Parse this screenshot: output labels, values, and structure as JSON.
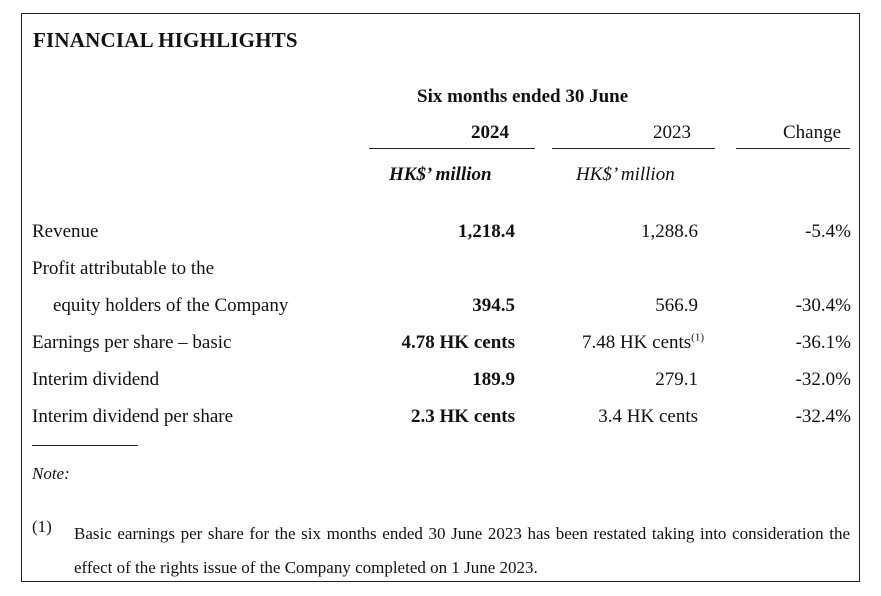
{
  "title": "FINANCIAL HIGHLIGHTS",
  "period": "Six months ended 30 June",
  "columns": {
    "current": "2024",
    "prior": "2023",
    "change": "Change",
    "unit_current": "HK$’ million",
    "unit_prior": "HK$’ million"
  },
  "rows": [
    {
      "label": "Revenue",
      "current": "1,218.4",
      "prior": "1,288.6",
      "change": "-5.4%"
    },
    {
      "label": "Profit attributable to the",
      "current": "",
      "prior": "",
      "change": ""
    },
    {
      "label": "equity holders of the Company",
      "current": "394.5",
      "prior": "566.9",
      "change": "-30.4%"
    },
    {
      "label": "Earnings per share – basic",
      "current": "4.78 HK cents",
      "prior": "7.48 HK cents",
      "prior_sup": "(1)",
      "change": "-36.1%"
    },
    {
      "label": "Interim dividend",
      "current": "189.9",
      "prior": "279.1",
      "change": "-32.0%"
    },
    {
      "label": "Interim dividend per share",
      "current": "2.3 HK cents",
      "prior": "3.4 HK cents",
      "change": "-32.4%"
    }
  ],
  "note": {
    "label": "Note:",
    "number": "(1)",
    "text": "Basic earnings per share for the six months ended 30 June 2023 has been restated taking into consideration the effect of the rights issue of the Company completed on 1 June 2023."
  }
}
